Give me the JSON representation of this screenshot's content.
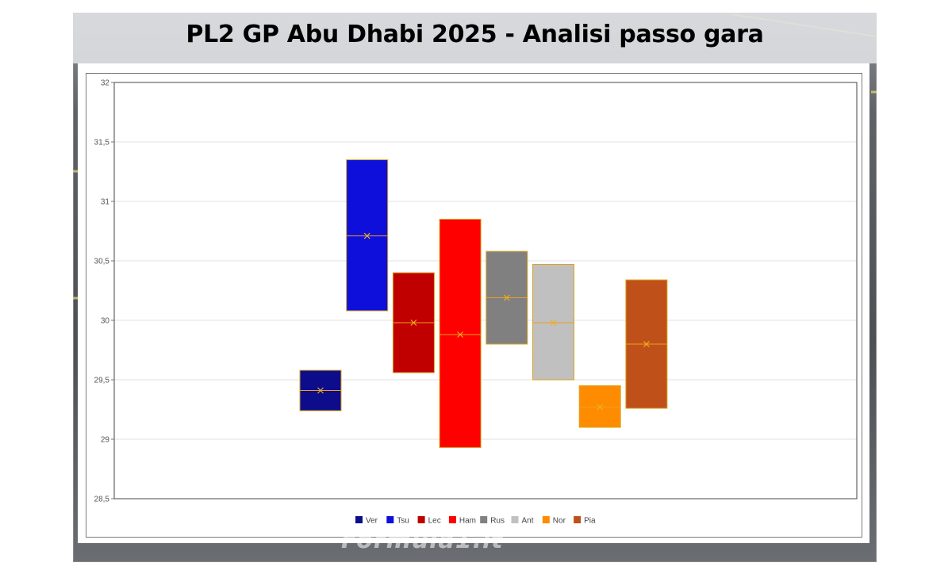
{
  "title": "PL2 GP Abu Dhabi 2025 - Analisi passo gara",
  "watermark": "Formula1.it",
  "chart_data": {
    "type": "box",
    "ylim": [
      28.5,
      32
    ],
    "yticks": [
      28.5,
      29,
      29.5,
      30,
      30.5,
      31,
      31.5,
      32
    ],
    "ytick_labels": [
      "28,5",
      "29",
      "29,5",
      "30",
      "30,5",
      "31",
      "31,5",
      "32"
    ],
    "grid": true,
    "legend_position": "bottom",
    "series": [
      {
        "name": "Ver",
        "color": "#0d0d8c",
        "low": 29.24,
        "high": 29.58,
        "mean": 29.41
      },
      {
        "name": "Tsu",
        "color": "#0f0fdc",
        "low": 30.08,
        "high": 31.35,
        "mean": 30.71
      },
      {
        "name": "Lec",
        "color": "#c00000",
        "low": 29.56,
        "high": 30.4,
        "mean": 29.98
      },
      {
        "name": "Ham",
        "color": "#ff0000",
        "low": 28.93,
        "high": 30.85,
        "mean": 29.88
      },
      {
        "name": "Rus",
        "color": "#808080",
        "low": 29.8,
        "high": 30.58,
        "mean": 30.19
      },
      {
        "name": "Ant",
        "color": "#c0c0c0",
        "low": 29.5,
        "high": 30.47,
        "mean": 29.98
      },
      {
        "name": "Nor",
        "color": "#ff8c00",
        "low": 29.1,
        "high": 29.45,
        "mean": 29.27
      },
      {
        "name": "Pia",
        "color": "#c0501a",
        "low": 29.26,
        "high": 30.34,
        "mean": 29.8
      }
    ]
  }
}
